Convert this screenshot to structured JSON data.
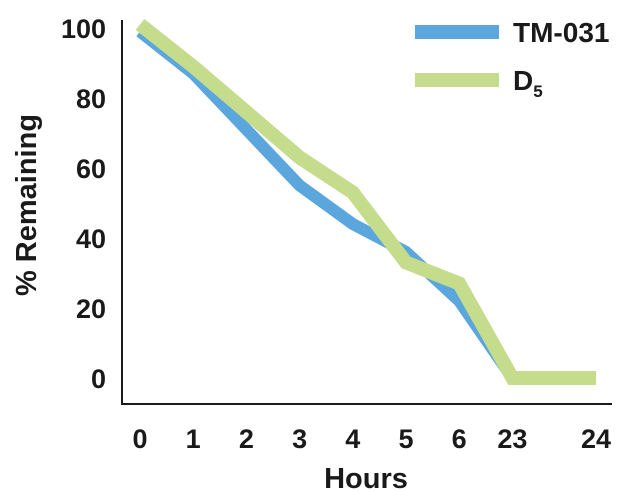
{
  "chart_data": {
    "type": "line",
    "title": "",
    "xlabel": "Hours",
    "ylabel": "% Remaining",
    "categories": [
      "0",
      "1",
      "2",
      "3",
      "4",
      "5",
      "6",
      "23",
      "24"
    ],
    "ylim": [
      0,
      100
    ],
    "yticks": [
      "0",
      "20",
      "40",
      "60",
      "80",
      "100"
    ],
    "grid": false,
    "legend_position": "top-right",
    "series": [
      {
        "name": "TM-031",
        "name_sub": "",
        "color": "#5aa6dd",
        "values": [
          99,
          87,
          71,
          55,
          44,
          36,
          22,
          0,
          0
        ]
      },
      {
        "name": "D",
        "name_sub": "5",
        "color": "#c4dc8c",
        "values": [
          101,
          89,
          76,
          63,
          53,
          33,
          27,
          0,
          0
        ]
      }
    ]
  }
}
